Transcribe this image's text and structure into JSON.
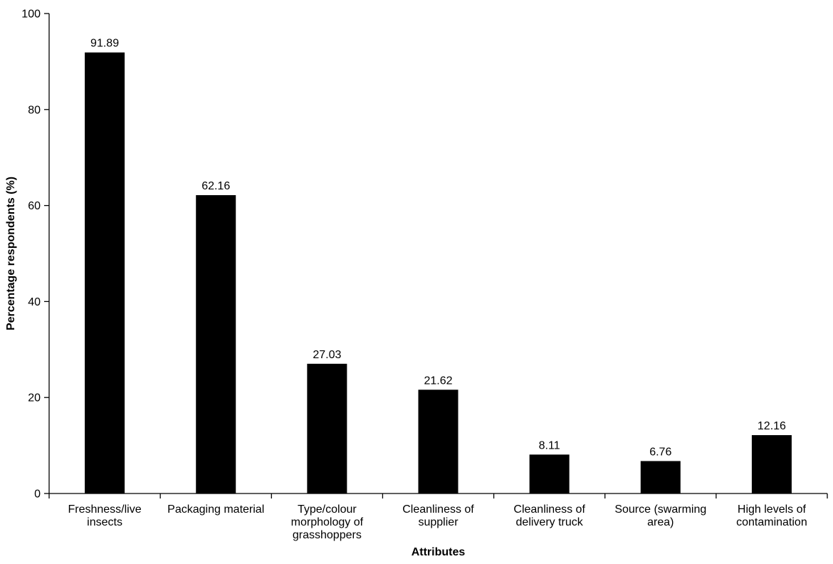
{
  "chart_data": {
    "type": "bar",
    "title": "",
    "xlabel": "Attributes",
    "ylabel": "Percentage respondents (%)",
    "ylim": [
      0,
      100
    ],
    "yticks": [
      "0",
      "20",
      "40",
      "60",
      "80",
      "100"
    ],
    "grid": false,
    "legend": "none",
    "bar_color": "#000000",
    "categories": [
      [
        "Freshness/live",
        "insects"
      ],
      [
        "Packaging material"
      ],
      [
        "Type/colour",
        "morphology of",
        "grasshoppers"
      ],
      [
        "Cleanliness of",
        "supplier"
      ],
      [
        "Cleanliness of",
        "delivery truck"
      ],
      [
        "Source (swarming",
        "area)"
      ],
      [
        "High levels of",
        "contamination"
      ]
    ],
    "values": [
      91.89,
      62.16,
      27.03,
      21.62,
      8.11,
      6.76,
      12.16
    ],
    "value_labels": [
      "91.89",
      "62.16",
      "27.03",
      "21.62",
      "8.11",
      "6.76",
      "12.16"
    ]
  }
}
